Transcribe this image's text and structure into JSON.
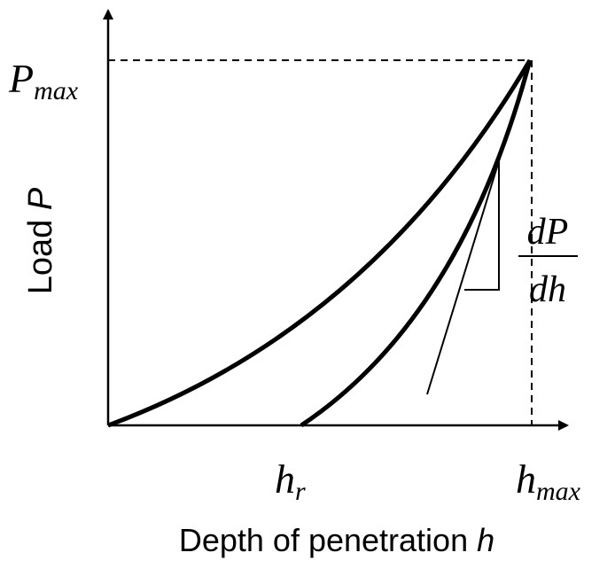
{
  "labels": {
    "p_max": {
      "symbol": "P",
      "subscript": "max"
    },
    "h_r": {
      "symbol": "h",
      "subscript": "r"
    },
    "h_max": {
      "symbol": "h",
      "subscript": "max"
    },
    "slope": {
      "numerator": "dP",
      "denominator": "dh"
    },
    "y_axis": {
      "text": "Load",
      "variable": "P"
    },
    "x_axis": {
      "text": "Depth of penetration",
      "variable": "h"
    }
  }
}
